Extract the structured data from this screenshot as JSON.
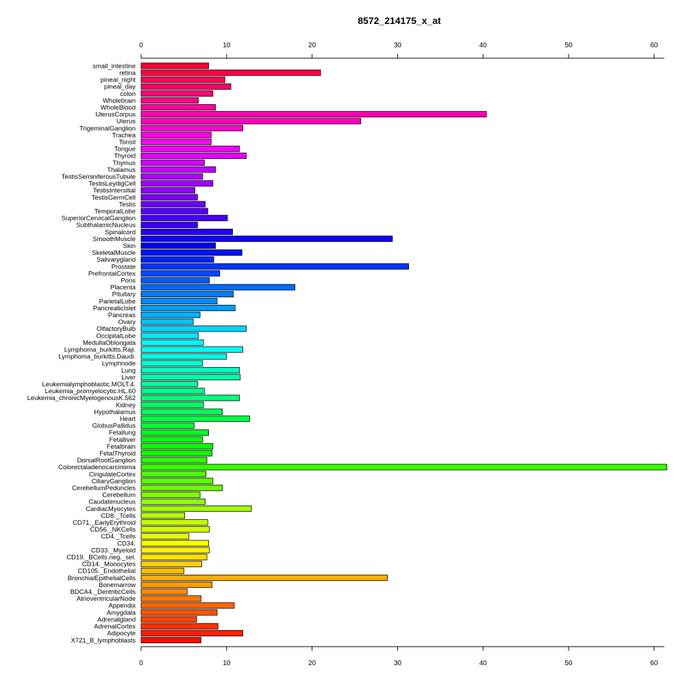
{
  "chart_data": {
    "type": "bar",
    "orientation": "horizontal",
    "title": "8572_214175_x_at",
    "xlabel": "",
    "ylabel": "",
    "xlim": [
      0,
      61.5
    ],
    "xticks": [
      0,
      10,
      20,
      30,
      40,
      50,
      60
    ],
    "grid": false,
    "color_scheme": "rainbow",
    "categories": [
      "small_intestine",
      "retina",
      "pineal_night",
      "pineal_day",
      "colon",
      "Wholebrain",
      "WholeBlood",
      "UterusCorpus",
      "Uterus",
      "TrigeminalGanglion",
      "Trachea",
      "Tonsil",
      "Tongue",
      "Thyroid",
      "Thymus",
      "Thalamus",
      "TestisSeminiferousTubule",
      "TestisLeydigCell",
      "TestisIntersitial",
      "TestisGermCell",
      "Testis",
      "TemporalLobe",
      "SuperiorCervicalGanglion",
      "SubthalamicNucleus",
      "Spinalcord",
      "SmoothMuscle",
      "Skin",
      "SkeletalMuscle",
      "Salivarygland",
      "Prostate",
      "PrefrontalCortex",
      "Pons",
      "Placenta",
      "Pituitary",
      "ParietalLobe",
      "PancreaticIslet",
      "Pancreas",
      "Ovary",
      "OlfactoryBulb",
      "OccipitalLobe",
      "MedullaOblongata",
      "Lymphoma_burkitts.Raji.",
      "Lymphoma_burkitts.Daudi.",
      "Lymphnode",
      "Lung",
      "Liver",
      "Leukemialymphoblastic.MOLT.4.",
      "Leukemia_promyelocytic.HL.60",
      "Leukemia_chronicMyelogenousK.562",
      "Kidney",
      "Hypothalamus",
      "Heart",
      "GlobusPallidus",
      "Fetallung",
      "Fetalliver",
      "Fetalbrain",
      "FetalThyroid",
      "DorsalRootGanglion",
      "Colorectaladenocarcinoma",
      "CingulateCortex",
      "CiliaryGanglion",
      "CerebellumPeduncles",
      "Cerebellum",
      "Caudatenucleus",
      "CardiacMyocytes",
      "CD8._Tcells",
      "CD71._EarlyErythroid",
      "CD56._NKCells",
      "CD4._Tcells",
      "CD34.",
      "CD33._Myeloid",
      "CD19._BCells.neg._sel.",
      "CD14._Monocytes",
      "CD105._Endothelial",
      "BronchialEpithelialCells",
      "Bonemarrow",
      "BDCA4._DentriticCells",
      "AtrioventricularNode",
      "Appendix",
      "Amygdala",
      "Adrenalgland",
      "AdrenalCortex",
      "Adipocyte",
      "X721_B_lymphoblasts"
    ],
    "values": [
      7.9,
      21.0,
      9.8,
      10.5,
      8.4,
      6.7,
      8.7,
      40.4,
      25.7,
      11.9,
      8.2,
      8.2,
      11.5,
      12.3,
      7.4,
      8.7,
      7.2,
      8.4,
      6.3,
      6.6,
      7.5,
      7.8,
      10.1,
      6.6,
      10.7,
      29.4,
      8.7,
      11.8,
      8.5,
      31.3,
      9.2,
      8.0,
      18.0,
      10.8,
      8.9,
      11.0,
      6.9,
      6.1,
      12.3,
      6.7,
      7.3,
      11.9,
      10.0,
      7.2,
      11.5,
      11.6,
      6.6,
      7.4,
      11.5,
      7.3,
      9.5,
      12.7,
      6.2,
      7.9,
      7.2,
      8.4,
      8.3,
      7.7,
      61.5,
      7.6,
      8.4,
      9.5,
      6.9,
      7.5,
      12.9,
      5.1,
      7.8,
      8.0,
      5.6,
      7.9,
      8.0,
      7.7,
      7.1,
      5.0,
      28.8,
      8.3,
      5.4,
      7.0,
      10.9,
      8.9,
      6.5,
      9.0,
      11.9,
      7.0
    ]
  }
}
